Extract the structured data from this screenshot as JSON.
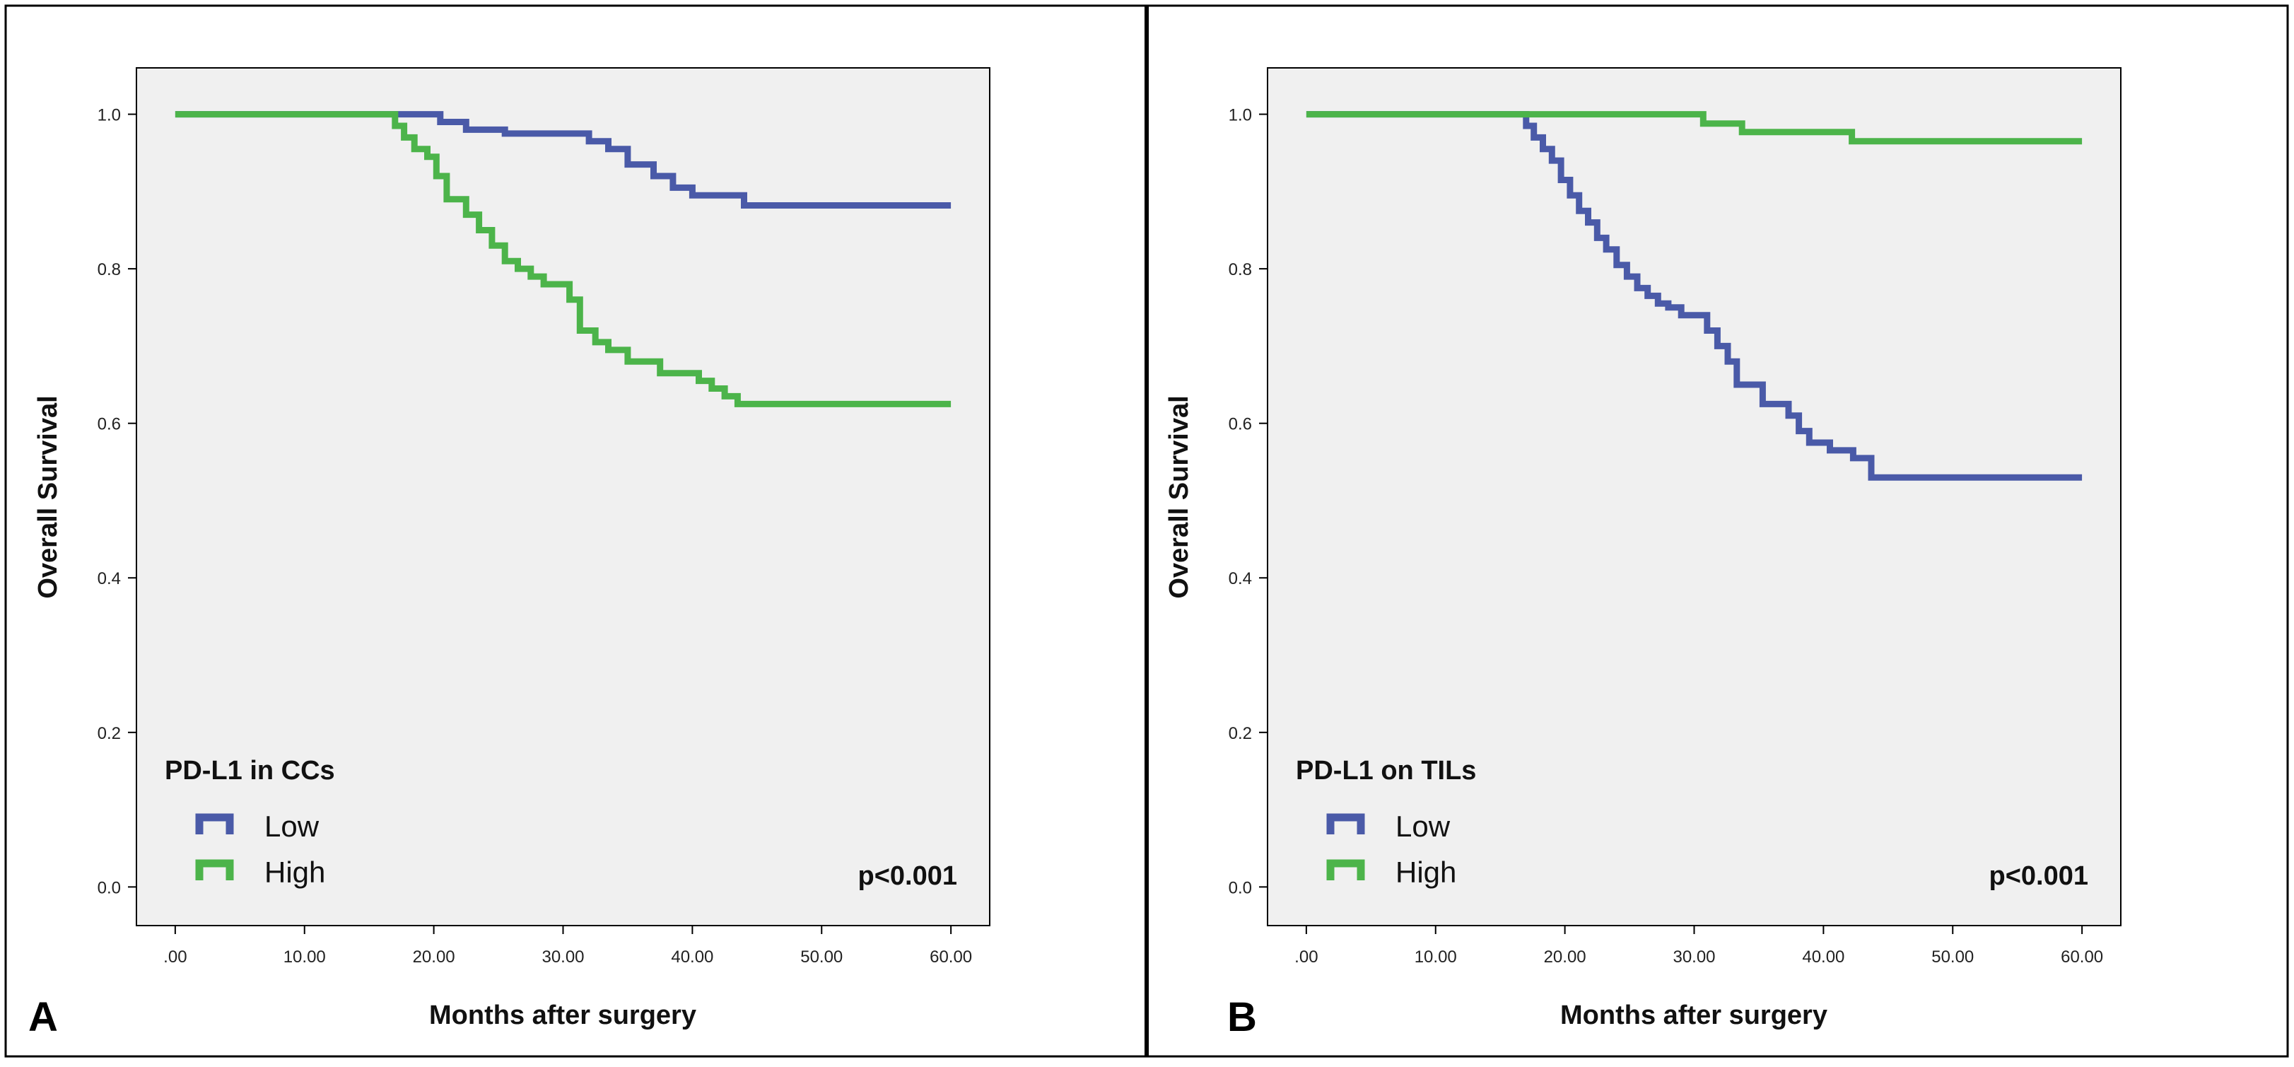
{
  "colors": {
    "low": "#4a5aa8",
    "high": "#4cb44a",
    "plot_bg": "#f0f0f0",
    "frame": "#000000"
  },
  "chart_data": [
    {
      "type": "line",
      "step": true,
      "panel_label": "A",
      "title": "",
      "xlabel": "Months after surgery",
      "ylabel": "Overall Survival",
      "xlim": [
        -3,
        63
      ],
      "ylim": [
        -0.05,
        1.06
      ],
      "x_ticks": [
        0,
        10,
        20,
        30,
        40,
        50,
        60
      ],
      "x_tick_labels": [
        ".00",
        "10.00",
        "20.00",
        "30.00",
        "40.00",
        "50.00",
        "60.00"
      ],
      "y_ticks": [
        0,
        0.2,
        0.4,
        0.6,
        0.8,
        1.0
      ],
      "y_tick_labels": [
        "0.0",
        "0.2",
        "0.4",
        "0.6",
        "0.8",
        "1.0"
      ],
      "legend_title": "PD-L1 in CCs",
      "legend_position": "bottom-left",
      "annotation": "p<0.001",
      "series": [
        {
          "name": "Low",
          "color_key": "low",
          "x": [
            0,
            20.5,
            22.5,
            25.5,
            32,
            33.5,
            35,
            37,
            38.5,
            40,
            44,
            60
          ],
          "y": [
            1.0,
            0.99,
            0.98,
            0.975,
            0.965,
            0.955,
            0.935,
            0.92,
            0.905,
            0.895,
            0.882,
            0.882
          ]
        },
        {
          "name": "High",
          "color_key": "high",
          "x": [
            0,
            17,
            17.7,
            18.5,
            19.5,
            20.2,
            21,
            22.5,
            23.5,
            24.5,
            25.5,
            26.5,
            27.5,
            28.5,
            30.5,
            31.3,
            32.5,
            33.5,
            35,
            37.5,
            40.5,
            41.5,
            42.5,
            43.5,
            60
          ],
          "y": [
            1.0,
            0.985,
            0.97,
            0.955,
            0.945,
            0.92,
            0.89,
            0.87,
            0.85,
            0.83,
            0.81,
            0.8,
            0.79,
            0.78,
            0.76,
            0.72,
            0.705,
            0.695,
            0.68,
            0.665,
            0.655,
            0.645,
            0.635,
            0.625,
            0.625
          ]
        }
      ]
    },
    {
      "type": "line",
      "step": true,
      "panel_label": "B",
      "title": "",
      "xlabel": "Months after surgery",
      "ylabel": "Overall Survival",
      "xlim": [
        -3,
        63
      ],
      "ylim": [
        -0.05,
        1.06
      ],
      "x_ticks": [
        0,
        10,
        20,
        30,
        40,
        50,
        60
      ],
      "x_tick_labels": [
        ".00",
        "10.00",
        "20.00",
        "30.00",
        "40.00",
        "50.00",
        "60.00"
      ],
      "y_ticks": [
        0,
        0.2,
        0.4,
        0.6,
        0.8,
        1.0
      ],
      "y_tick_labels": [
        "0.0",
        "0.2",
        "0.4",
        "0.6",
        "0.8",
        "1.0"
      ],
      "legend_title": "PD-L1 on TILs",
      "legend_position": "bottom-left",
      "annotation": "p<0.001",
      "series": [
        {
          "name": "Low",
          "color_key": "low",
          "x": [
            0,
            17,
            17.6,
            18.3,
            19,
            19.7,
            20.4,
            21.1,
            21.8,
            22.5,
            23.2,
            24,
            24.8,
            25.6,
            26.4,
            27.2,
            28,
            29,
            31,
            31.8,
            32.6,
            33.3,
            35.3,
            37.3,
            38.1,
            38.9,
            40.5,
            42.3,
            43.7,
            60
          ],
          "y": [
            1.0,
            0.985,
            0.97,
            0.955,
            0.94,
            0.915,
            0.895,
            0.875,
            0.86,
            0.84,
            0.825,
            0.805,
            0.79,
            0.775,
            0.765,
            0.755,
            0.75,
            0.74,
            0.72,
            0.7,
            0.68,
            0.65,
            0.625,
            0.61,
            0.59,
            0.575,
            0.565,
            0.555,
            0.53,
            0.53
          ]
        },
        {
          "name": "High",
          "color_key": "high",
          "x": [
            0,
            30.7,
            33.7,
            42.2,
            60
          ],
          "y": [
            1.0,
            0.988,
            0.977,
            0.965,
            0.965
          ]
        }
      ]
    }
  ]
}
